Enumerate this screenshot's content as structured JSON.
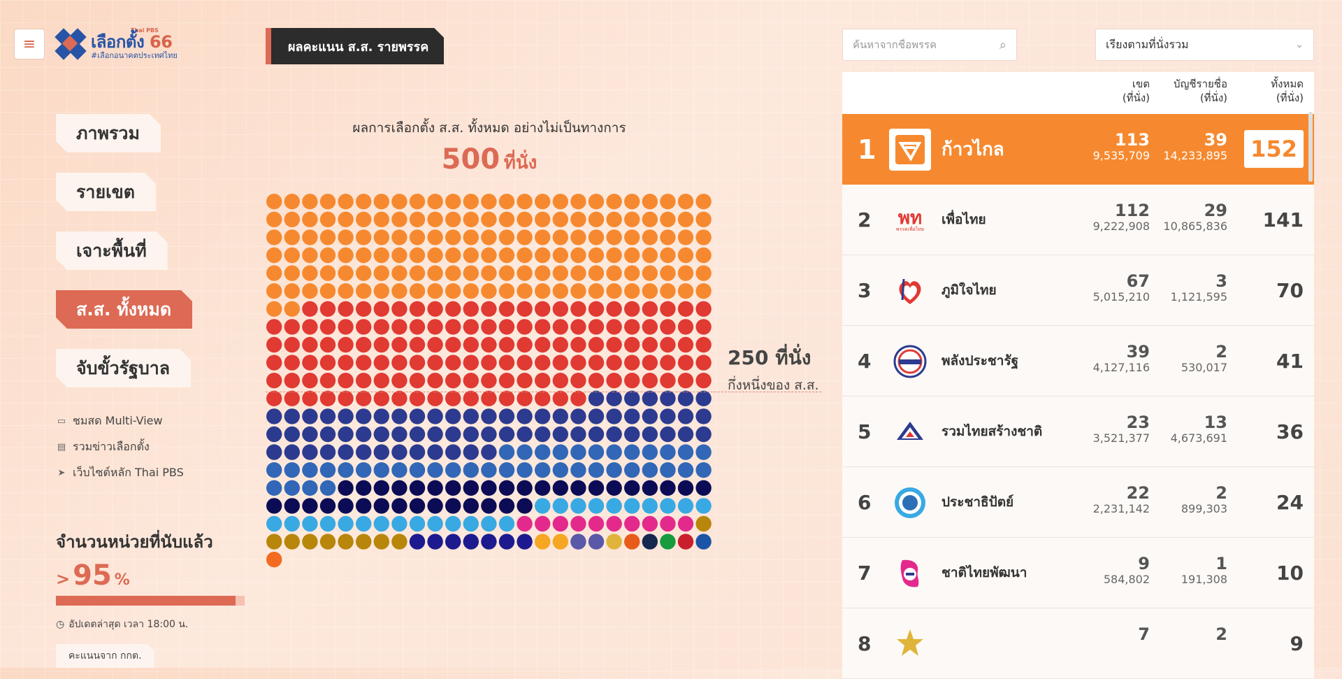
{
  "header": {
    "logo_small": "Thai PBS",
    "logo_main_a": "เลือกตั้ง",
    "logo_main_b": "66",
    "logo_sub": "#เลือกอนาคตประเทศไทย",
    "section_tag": "ผลคะแนน ส.ส. รายพรรค"
  },
  "nav": {
    "items": [
      {
        "label": "ภาพรวม"
      },
      {
        "label": "รายเขต"
      },
      {
        "label": "เจาะพื้นที่"
      },
      {
        "label": "ส.ส. ทั้งหมด"
      },
      {
        "label": "จับขั้วรัฐบาล"
      }
    ],
    "active_index": 3
  },
  "links": [
    {
      "label": "ชมสด Multi-View",
      "icon": "monitor-icon"
    },
    {
      "label": "รวมข่าวเลือกตั้ง",
      "icon": "newspaper-icon"
    },
    {
      "label": "เว็บไซต์หลัก Thai PBS",
      "icon": "arrow-icon"
    }
  ],
  "count": {
    "title": "จำนวนหน่วยที่นับแล้ว",
    "prefix": ">",
    "value": "95",
    "unit": "%",
    "progress": 0.95,
    "updated": "อัปเดตล่าสุด เวลา 18:00 น.",
    "source": "คะแนนจาก กกต."
  },
  "chart": {
    "title": "ผลการเลือกตั้ง ส.ส. ทั้งหมด อย่างไม่เป็นทางการ",
    "total_num": "500",
    "total_unit": "ที่นั่ง",
    "half_big": "250 ที่นั่ง",
    "half_small": "กึ่งหนึ่งของ ส.ส."
  },
  "chart_data": {
    "type": "waffle",
    "total": 500,
    "columns": 25,
    "series": [
      {
        "name": "ก้าวไกล",
        "value": 152,
        "color": "#f6892f"
      },
      {
        "name": "เพื่อไทย",
        "value": 141,
        "color": "#e03a33"
      },
      {
        "name": "ภูมิใจไทย",
        "value": 70,
        "color": "#2c3b8f"
      },
      {
        "name": "พลังประชารัฐ",
        "value": 41,
        "color": "#3167b6"
      },
      {
        "name": "รวมไทยสร้างชาติ",
        "value": 36,
        "color": "#0b0c55"
      },
      {
        "name": "ประชาธิปัตย์",
        "value": 24,
        "color": "#38a9e3"
      },
      {
        "name": "ชาติไทยพัฒนา",
        "value": 10,
        "color": "#e32a8c"
      },
      {
        "value": 9,
        "color": "#b8860b"
      },
      {
        "value": 7,
        "color": "#1d1a8f"
      },
      {
        "value": 2,
        "color": "#f5a623"
      },
      {
        "value": 2,
        "color": "#5a58a8"
      },
      {
        "value": 1,
        "color": "#e0b43a"
      },
      {
        "value": 1,
        "color": "#e85b1a"
      },
      {
        "value": 1,
        "color": "#17284f"
      },
      {
        "value": 1,
        "color": "#189a3e"
      },
      {
        "value": 1,
        "color": "#c91f2c"
      },
      {
        "value": 1,
        "color": "#1b55a8"
      },
      {
        "value": 1,
        "color": "#f26b21"
      }
    ]
  },
  "search": {
    "placeholder": "ค้นหาจากชื่อพรรค"
  },
  "sort": {
    "label": "เรียงตามที่นั่งรวม"
  },
  "table": {
    "headers": {
      "district_a": "เขต",
      "district_b": "(ที่นั่ง)",
      "list_a": "บัญชีรายชื่อ",
      "list_b": "(ที่นั่ง)",
      "total_a": "ทั้งหมด",
      "total_b": "(ที่นั่ง)"
    },
    "rows": [
      {
        "rank": "1",
        "name": "ก้าวไกล",
        "district_seats": "113",
        "district_votes": "9,535,709",
        "list_seats": "39",
        "list_votes": "14,233,895",
        "total": "152",
        "logo": "move-forward-logo",
        "color": "#f6892f"
      },
      {
        "rank": "2",
        "name": "เพื่อไทย",
        "district_seats": "112",
        "district_votes": "9,222,908",
        "list_seats": "29",
        "list_votes": "10,865,836",
        "total": "141",
        "logo": "pheu-thai-logo",
        "logo_text": "พท",
        "logo_caption": "พรรคเพื่อไทย",
        "color": "#e03a33"
      },
      {
        "rank": "3",
        "name": "ภูมิใจไทย",
        "district_seats": "67",
        "district_votes": "5,015,210",
        "list_seats": "3",
        "list_votes": "1,121,595",
        "total": "70",
        "logo": "bhumjaithai-logo",
        "color": "#2c3b8f"
      },
      {
        "rank": "4",
        "name": "พลังประชารัฐ",
        "district_seats": "39",
        "district_votes": "4,127,116",
        "list_seats": "2",
        "list_votes": "530,017",
        "total": "41",
        "logo": "palang-pracharath-logo",
        "color": "#3167b6"
      },
      {
        "rank": "5",
        "name": "รวมไทยสร้างชาติ",
        "district_seats": "23",
        "district_votes": "3,521,377",
        "list_seats": "13",
        "list_votes": "4,673,691",
        "total": "36",
        "logo": "ruam-thai-sang-chart-logo",
        "color": "#0b0c55"
      },
      {
        "rank": "6",
        "name": "ประชาธิปัตย์",
        "district_seats": "22",
        "district_votes": "2,231,142",
        "list_seats": "2",
        "list_votes": "899,303",
        "total": "24",
        "logo": "democrat-logo",
        "color": "#38a9e3"
      },
      {
        "rank": "7",
        "name": "ชาติไทยพัฒนา",
        "district_seats": "9",
        "district_votes": "584,802",
        "list_seats": "1",
        "list_votes": "191,308",
        "total": "10",
        "logo": "chart-thai-pattana-logo",
        "color": "#e32a8c"
      },
      {
        "rank": "8",
        "name": "",
        "district_seats": "7",
        "district_votes": "",
        "list_seats": "2",
        "list_votes": "",
        "total": "9",
        "logo": "party-8-logo",
        "color": "#b8860b"
      }
    ]
  }
}
